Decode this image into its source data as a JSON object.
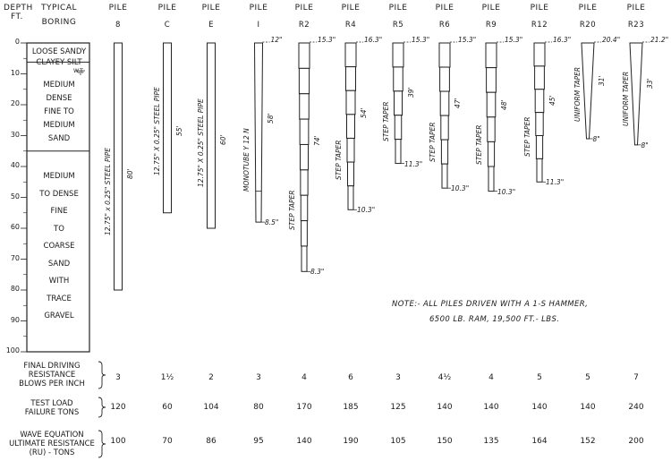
{
  "header": {
    "depth": "DEPTH",
    "ft": "FT.",
    "typical": "TYPICAL",
    "boring": "BORING"
  },
  "depth_ticks": [
    "0",
    "10",
    "20",
    "30",
    "40",
    "50",
    "60",
    "70",
    "80",
    "90",
    "100"
  ],
  "soil_layers": [
    {
      "lines": [
        "LOOSE SANDY",
        "CLAYEY SILT"
      ]
    },
    {
      "lines": [
        "MEDIUM",
        "DENSE",
        "FINE TO",
        "MEDIUM",
        "SAND"
      ]
    },
    {
      "lines": [
        "MEDIUM",
        "TO DENSE",
        "FINE",
        "TO",
        "COARSE",
        "SAND",
        "WITH",
        "TRACE",
        "GRAVEL"
      ]
    }
  ],
  "wt_label": "W.T.",
  "piles": [
    {
      "pile": "PILE",
      "id": "8",
      "type": "12.75\" x 0.25\" STEEL PIPE",
      "length": "80'",
      "top": "",
      "tip": "",
      "bottom_ft": 80
    },
    {
      "pile": "PILE",
      "id": "C",
      "type": "12.75\" X 0.25\" STEEL PIPE",
      "length": "55'",
      "top": "",
      "tip": "",
      "bottom_ft": 55
    },
    {
      "pile": "PILE",
      "id": "E",
      "type": "12.75\" X 0.25\" STEEL PIPE",
      "length": "60'",
      "top": "",
      "tip": "",
      "bottom_ft": 60
    },
    {
      "pile": "PILE",
      "id": "I",
      "type": "MONOTUBE Y 12 N",
      "length": "58'",
      "top": "12\"",
      "tip": "8.5\"",
      "bottom_ft": 58
    },
    {
      "pile": "PILE",
      "id": "R2",
      "type": "STEP TAPER",
      "length": "74'",
      "top": "15.3\"",
      "tip": "8.3\"",
      "bottom_ft": 74
    },
    {
      "pile": "PILE",
      "id": "R4",
      "type": "STEP TAPER",
      "length": "54'",
      "top": "16.3\"",
      "tip": "10.3\"",
      "bottom_ft": 54
    },
    {
      "pile": "PILE",
      "id": "R5",
      "type": "STEP TAPER",
      "length": "39'",
      "top": "15.3\"",
      "tip": "11.3\"",
      "bottom_ft": 39
    },
    {
      "pile": "PILE",
      "id": "R6",
      "type": "STEP TAPER",
      "length": "47'",
      "top": "15.3\"",
      "tip": "10.3\"",
      "bottom_ft": 47
    },
    {
      "pile": "PILE",
      "id": "R9",
      "type": "STEP TAPER",
      "length": "48'",
      "top": "15.3\"",
      "tip": "10.3\"",
      "bottom_ft": 48
    },
    {
      "pile": "PILE",
      "id": "R12",
      "type": "STEP TAPER",
      "length": "45'",
      "top": "16.3\"",
      "tip": "11.3\"",
      "bottom_ft": 45
    },
    {
      "pile": "PILE",
      "id": "R20",
      "type": "UNIFORM TAPER",
      "length": "31'",
      "top": "20.4\"",
      "tip": "8\"",
      "bottom_ft": 31
    },
    {
      "pile": "PILE",
      "id": "R23",
      "type": "UNIFORM TAPER",
      "length": "33'",
      "top": "21.2\"",
      "tip": "8\"",
      "bottom_ft": 33
    }
  ],
  "note": {
    "line1": "NOTE:- ALL PILES DRIVEN WITH A 1-S HAMMER,",
    "line2": "6500 LB. RAM, 19,500 FT.- LBS."
  },
  "rows": [
    {
      "label": [
        "FINAL DRIVING",
        "RESISTANCE",
        "BLOWS PER INCH"
      ],
      "values": [
        "3",
        "1½",
        "2",
        "3",
        "4",
        "6",
        "3",
        "4½",
        "4",
        "5",
        "5",
        "7"
      ]
    },
    {
      "label": [
        "TEST LOAD",
        "FAILURE TONS"
      ],
      "values": [
        "120",
        "60",
        "104",
        "80",
        "170",
        "185",
        "125",
        "140",
        "140",
        "140",
        "140",
        "240"
      ]
    },
    {
      "label": [
        "WAVE EQUATION",
        "ULTIMATE RESISTANCE",
        "(RU) - TONS"
      ],
      "values": [
        "100",
        "70",
        "86",
        "95",
        "140",
        "190",
        "105",
        "150",
        "135",
        "164",
        "152",
        "200"
      ]
    }
  ]
}
